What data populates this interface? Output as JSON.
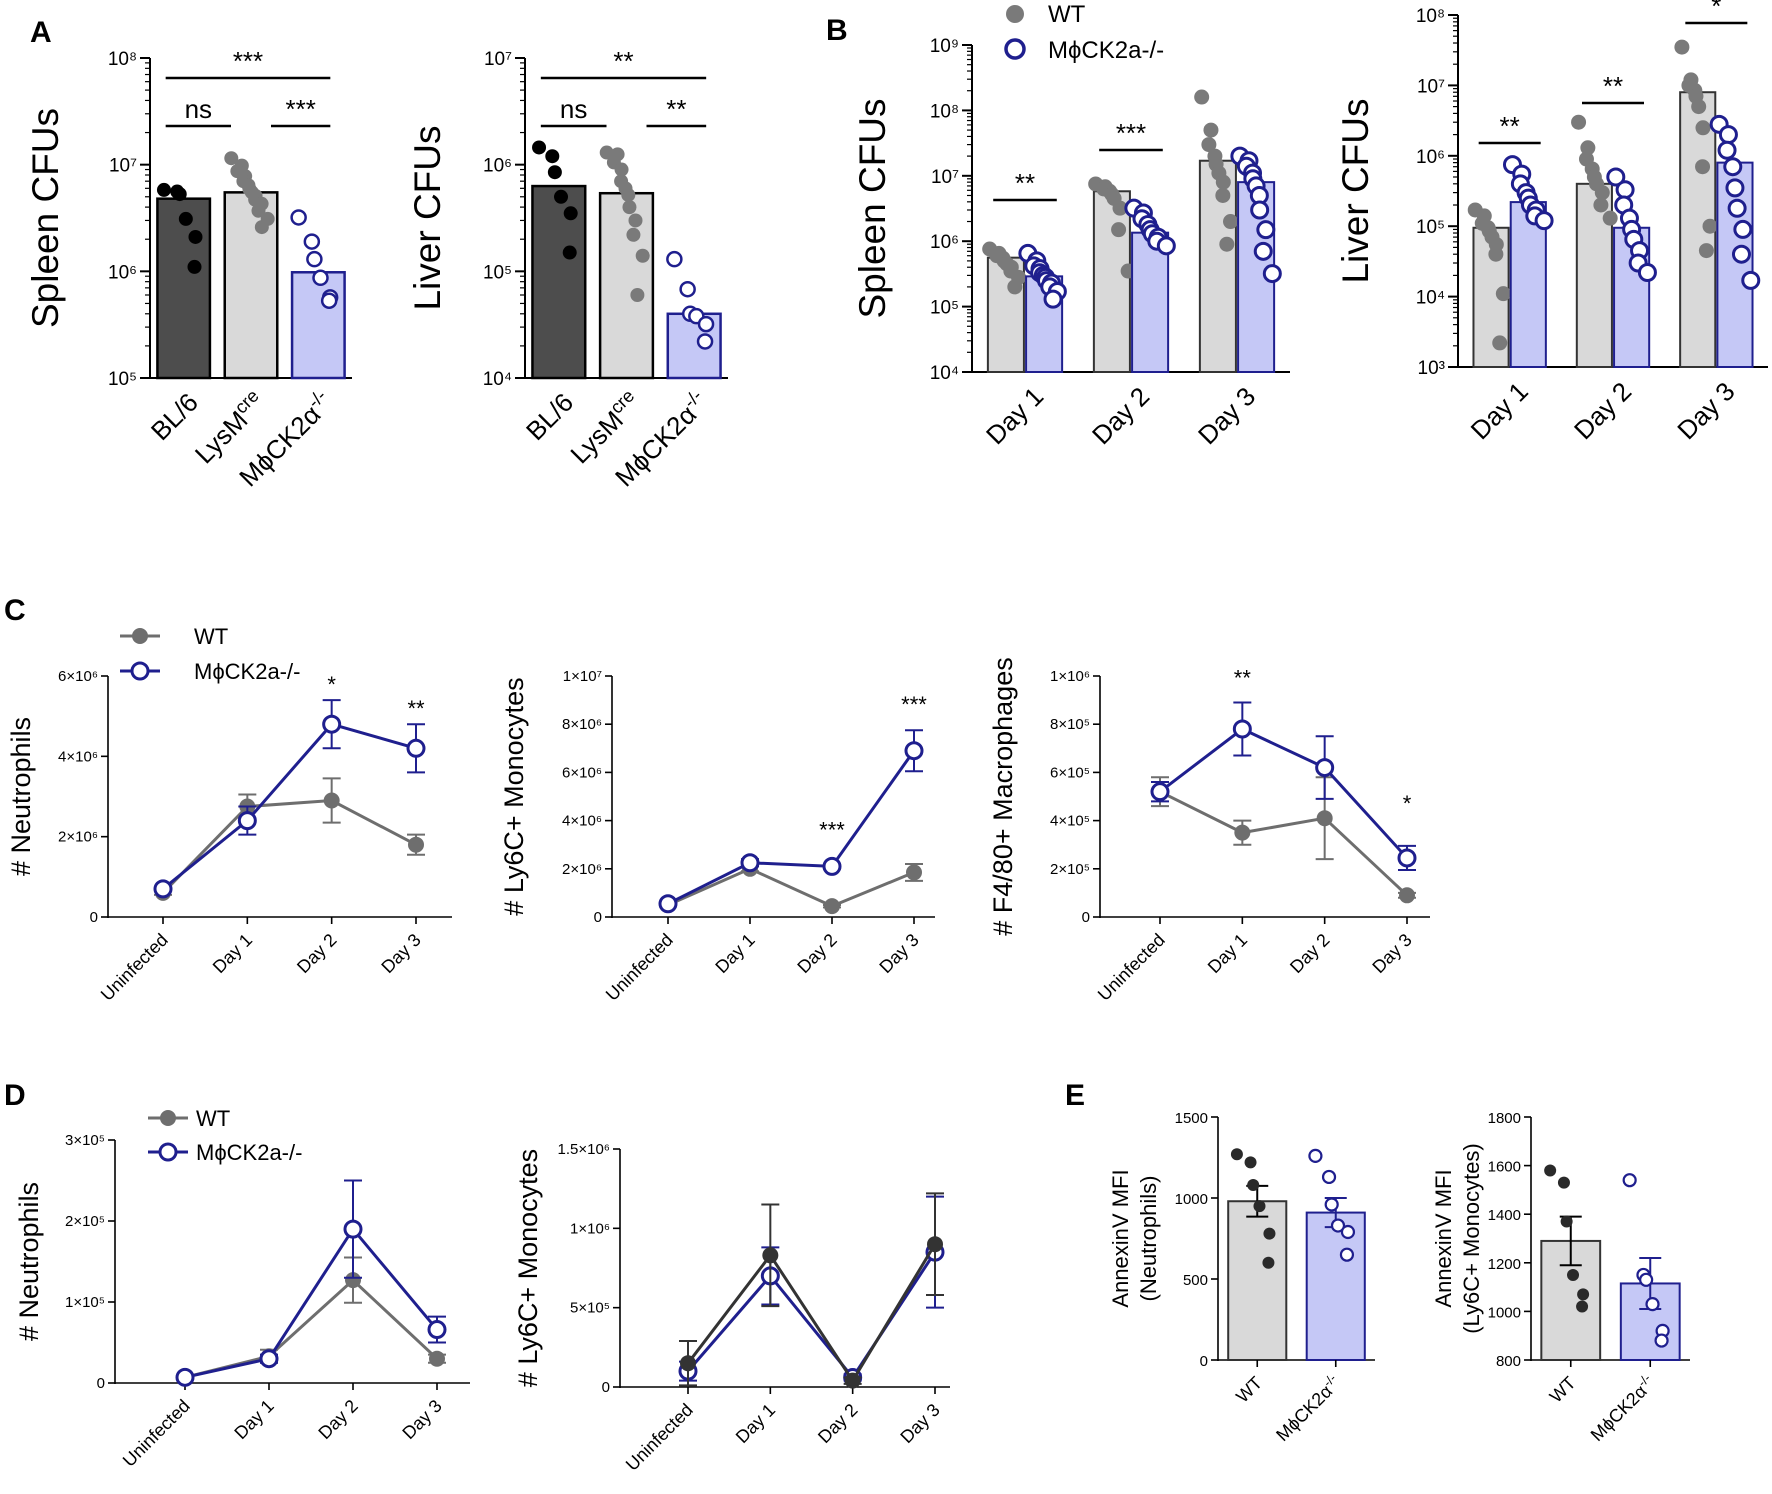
{
  "colors": {
    "bl6": "#4d4d4d",
    "gray_bar": "#d9d9d9",
    "gray_pt": "#7a7a7a",
    "wt_line": "#6e6e6e",
    "ko": "#1f1f8e",
    "ko_bar": "#c5c8f6",
    "dark": "#333333"
  },
  "legends": {
    "B": {
      "wt": "WT",
      "ko": "MϕCK2a-/-"
    },
    "C": {
      "wt": "WT",
      "ko": "MϕCK2a-/-"
    },
    "D": {
      "wt": "WT",
      "ko": "MϕCK2a-/-"
    }
  },
  "chart_data": [
    {
      "id": "A1",
      "panel_label": "A",
      "type": "bar",
      "ylabel": "Spleen  CFUs",
      "yscale": "log",
      "ylim_exp": [
        5,
        8
      ],
      "ticks": [
        "10⁵",
        "10⁶",
        "10⁷",
        "10⁸"
      ],
      "categories": [
        "BL/6",
        "LysMcre",
        "MϕCK2α-/-"
      ],
      "values": [
        4800000,
        5500000,
        980000
      ],
      "points": [
        [
          5800000,
          5600000,
          5300000,
          3100000,
          2100000,
          1100000
        ],
        [
          11500000,
          9800000,
          8700000,
          7800000,
          7000000,
          6400000,
          5900000,
          5500000,
          5100000,
          4700000,
          4300000,
          3700000,
          3100000,
          2600000
        ],
        [
          3200000,
          1900000,
          1300000,
          870000,
          570000,
          530000
        ]
      ],
      "sig": [
        {
          "label": "***",
          "from": 0,
          "to": 2
        },
        {
          "label": "ns",
          "from": 0,
          "to": 1
        },
        {
          "label": "***",
          "from": 1,
          "to": 2
        }
      ]
    },
    {
      "id": "A2",
      "type": "bar",
      "ylabel": "Liver  CFUs",
      "yscale": "log",
      "ylim_exp": [
        4,
        7
      ],
      "ticks": [
        "10⁴",
        "10⁵",
        "10⁶",
        "10⁷"
      ],
      "categories": [
        "BL/6",
        "LysMcre",
        "MϕCK2α-/-"
      ],
      "values": [
        630000,
        540000,
        40000
      ],
      "points": [
        [
          1450000,
          1200000,
          850000,
          500000,
          350000,
          150000
        ],
        [
          1300000,
          1250000,
          1050000,
          900000,
          700000,
          600000,
          520000,
          400000,
          300000,
          220000,
          140000,
          60000
        ],
        [
          130000,
          68000,
          40000,
          38000,
          32000,
          22000
        ]
      ],
      "sig": [
        {
          "label": "**",
          "from": 0,
          "to": 2
        },
        {
          "label": "ns",
          "from": 0,
          "to": 1
        },
        {
          "label": "**",
          "from": 1,
          "to": 2
        }
      ]
    },
    {
      "id": "B1",
      "panel_label": "B",
      "type": "bar",
      "ylabel": "Spleen  CFUs",
      "yscale": "log",
      "ylim_exp": [
        4,
        9
      ],
      "ticks": [
        "10⁴",
        "10⁵",
        "10⁶",
        "10⁷",
        "10⁸",
        "10⁹"
      ],
      "categories": [
        "Day 1",
        "Day 2",
        "Day 3"
      ],
      "series": [
        {
          "name": "WT",
          "values": [
            560000,
            5800000,
            17000000
          ],
          "points": [
            [
              760000,
              650000,
              600000,
              550000,
              500000,
              450000,
              400000,
              350000,
              280000,
              200000
            ],
            [
              7500000,
              6800000,
              6300000,
              5800000,
              5200000,
              4500000,
              3200000,
              1500000,
              350000
            ],
            [
              160000000,
              50000000,
              30000000,
              20000000,
              15000000,
              11000000,
              8000000,
              5000000,
              2000000,
              900000
            ]
          ]
        },
        {
          "name": "MϕCK2a-/-",
          "values": [
            290000,
            1350000,
            8000000
          ],
          "points": [
            [
              650000,
              500000,
              420000,
              380000,
              330000,
              300000,
              280000,
              250000,
              230000,
              200000,
              170000,
              130000
            ],
            [
              3200000,
              2700000,
              2200000,
              1800000,
              1500000,
              1300000,
              1150000,
              1000000,
              850000
            ],
            [
              20000000,
              17000000,
              14000000,
              11000000,
              9000000,
              7000000,
              5000000,
              3000000,
              1500000,
              700000,
              320000
            ]
          ]
        }
      ],
      "sig": [
        {
          "label": "**",
          "cat": 0
        },
        {
          "label": "***",
          "cat": 1
        }
      ]
    },
    {
      "id": "B2",
      "type": "bar",
      "ylabel": "Liver  CFUs",
      "yscale": "log",
      "ylim_exp": [
        3,
        8
      ],
      "ticks": [
        "10³",
        "10⁴",
        "10⁵",
        "10⁶",
        "10⁷",
        "10⁸"
      ],
      "categories": [
        "Day 1",
        "Day 2",
        "Day 3"
      ],
      "series": [
        {
          "name": "WT",
          "values": [
            95000,
            400000,
            8000000
          ],
          "points": [
            [
              170000,
              140000,
              110000,
              95000,
              85000,
              70000,
              55000,
              40000,
              11000,
              2200
            ],
            [
              3000000,
              1300000,
              900000,
              650000,
              500000,
              400000,
              300000,
              200000,
              130000
            ],
            [
              35000000,
              12000000,
              10000000,
              8500000,
              7000000,
              5000000,
              2500000,
              700000,
              100000,
              45000
            ]
          ]
        },
        {
          "name": "MϕCK2a-/-",
          "values": [
            220000,
            95000,
            800000
          ],
          "points": [
            [
              750000,
              550000,
              400000,
              300000,
              250000,
              200000,
              170000,
              140000,
              120000
            ],
            [
              500000,
              330000,
              200000,
              130000,
              90000,
              65000,
              45000,
              30000,
              22000
            ],
            [
              2800000,
              2000000,
              1200000,
              700000,
              350000,
              180000,
              90000,
              40000,
              17000
            ]
          ]
        }
      ],
      "sig": [
        {
          "label": "**",
          "cat": 0
        },
        {
          "label": "**",
          "cat": 1
        },
        {
          "label": "*",
          "cat": 2
        }
      ]
    },
    {
      "id": "C1",
      "panel_label": "C",
      "type": "line",
      "ylabel": "# Neutrophils",
      "ylim": [
        0,
        6000000
      ],
      "ticks": [
        "0",
        "2×10⁶",
        "4×10⁶",
        "6×10⁶"
      ],
      "categories": [
        "Uninfected",
        "Day 1",
        "Day 2",
        "Day 3"
      ],
      "series": [
        {
          "name": "WT",
          "values": [
            600000,
            2750000,
            2900000,
            1800000
          ],
          "err": [
            50000,
            300000,
            550000,
            250000
          ]
        },
        {
          "name": "MϕCK2a-/-",
          "values": [
            700000,
            2400000,
            4800000,
            4200000
          ],
          "err": [
            50000,
            350000,
            600000,
            600000
          ]
        }
      ],
      "sig": [
        {
          "label": "*",
          "cat": 2,
          "y": 5600000
        },
        {
          "label": "**",
          "cat": 3,
          "y": 5000000
        }
      ]
    },
    {
      "id": "C2",
      "type": "line",
      "ylabel": "# Ly6C+  Monocytes",
      "ylim": [
        0,
        10000000
      ],
      "ticks": [
        "0",
        "2×10⁶",
        "4×10⁶",
        "6×10⁶",
        "8×10⁶",
        "1×10⁷"
      ],
      "categories": [
        "Uninfected",
        "Day 1",
        "Day 2",
        "Day 3"
      ],
      "series": [
        {
          "name": "WT",
          "values": [
            500000,
            2000000,
            450000,
            1850000
          ],
          "err": [
            50000,
            100000,
            50000,
            350000
          ]
        },
        {
          "name": "MϕCK2a-/-",
          "values": [
            550000,
            2250000,
            2100000,
            6900000
          ],
          "err": [
            50000,
            150000,
            100000,
            850000
          ]
        }
      ],
      "sig": [
        {
          "label": "***",
          "cat": 2,
          "y": 3300000
        },
        {
          "label": "***",
          "cat": 3,
          "y": 8500000
        }
      ]
    },
    {
      "id": "C3",
      "type": "line",
      "ylabel": "# F4/80+  Macrophages",
      "ylim": [
        0,
        1000000
      ],
      "ticks": [
        "0",
        "2×10⁵",
        "4×10⁵",
        "6×10⁵",
        "8×10⁵",
        "1×10⁶"
      ],
      "categories": [
        "Uninfected",
        "Day 1",
        "Day 2",
        "Day 3"
      ],
      "series": [
        {
          "name": "WT",
          "values": [
            520000,
            350000,
            410000,
            90000
          ],
          "err": [
            60000,
            50000,
            170000,
            10000
          ]
        },
        {
          "name": "MϕCK2a-/-",
          "values": [
            520000,
            780000,
            620000,
            245000
          ],
          "err": [
            40000,
            110000,
            130000,
            50000
          ]
        }
      ],
      "sig": [
        {
          "label": "**",
          "cat": 1,
          "y": 960000
        },
        {
          "label": "*",
          "cat": 3,
          "y": 440000
        }
      ]
    },
    {
      "id": "D1",
      "panel_label": "D",
      "type": "line",
      "ylabel": "# Neutrophils",
      "ylim": [
        0,
        300000
      ],
      "ticks": [
        "0",
        "1×10⁵",
        "2×10⁵",
        "3×10⁵"
      ],
      "categories": [
        "Uninfected",
        "Day 1",
        "Day 2",
        "Day 3"
      ],
      "series": [
        {
          "name": "WT",
          "values": [
            7000,
            33000,
            127000,
            30000
          ],
          "err": [
            2000,
            8000,
            28000,
            5000
          ]
        },
        {
          "name": "MϕCK2a-/-",
          "values": [
            7000,
            30000,
            190000,
            66000
          ],
          "err": [
            2000,
            5000,
            60000,
            16000
          ]
        }
      ],
      "sig": []
    },
    {
      "id": "D2",
      "type": "line",
      "ylabel": "# Ly6C+  Monocytes",
      "ylim": [
        0,
        1500000
      ],
      "ticks": [
        "0",
        "5×10⁵",
        "1×10⁶",
        "1.5×10⁶"
      ],
      "categories": [
        "Uninfected",
        "Day 1",
        "Day 2",
        "Day 3"
      ],
      "series": [
        {
          "name": "WT",
          "values": [
            150000,
            830000,
            40000,
            900000
          ],
          "err": [
            140000,
            320000,
            20000,
            320000
          ]
        },
        {
          "name": "MϕCK2a-/-",
          "values": [
            100000,
            700000,
            60000,
            850000
          ],
          "err": [
            60000,
            180000,
            20000,
            350000
          ]
        }
      ],
      "sig": []
    },
    {
      "id": "E1",
      "panel_label": "E",
      "type": "bar",
      "ylabel": "AnnexinV MFI",
      "ylabel2": "(Neutrophils)",
      "ylim": [
        0,
        1500
      ],
      "ticks": [
        "0",
        "500",
        "1000",
        "1500"
      ],
      "categories": [
        "WT",
        "MϕCK2α-/-"
      ],
      "values": [
        980,
        910
      ],
      "err": [
        95,
        90
      ],
      "points": [
        [
          1270,
          1220,
          1080,
          950,
          780,
          600
        ],
        [
          1260,
          1130,
          960,
          830,
          790,
          650
        ]
      ]
    },
    {
      "id": "E2",
      "type": "bar",
      "ylabel": "AnnexinV MFI",
      "ylabel2": "(Ly6C+ Monocytes)",
      "ylim": [
        800,
        1800
      ],
      "ticks": [
        "800",
        "1000",
        "1200",
        "1400",
        "1600",
        "1800"
      ],
      "categories": [
        "WT",
        "MϕCK2α-/-"
      ],
      "values": [
        1290,
        1115
      ],
      "err": [
        100,
        105
      ],
      "points": [
        [
          1580,
          1530,
          1370,
          1150,
          1070,
          1020
        ],
        [
          1540,
          1150,
          1130,
          1030,
          920,
          880
        ]
      ]
    }
  ]
}
